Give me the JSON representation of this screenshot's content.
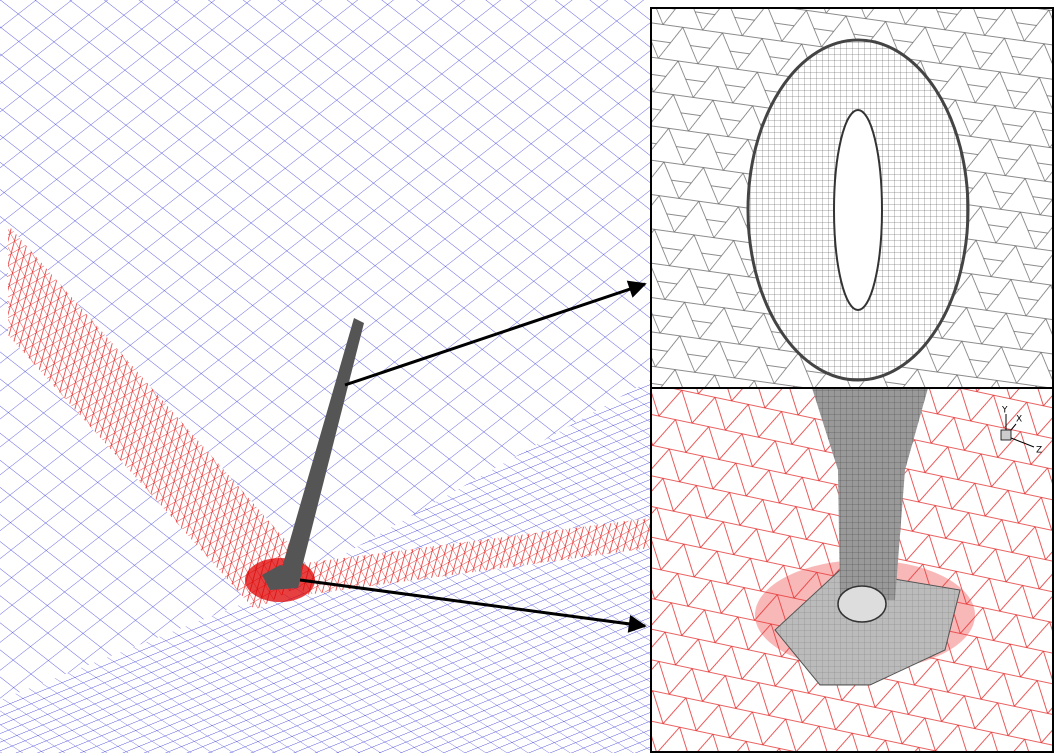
{
  "inset_axes": {
    "y": "Y",
    "x": "X",
    "z": "Z"
  }
}
